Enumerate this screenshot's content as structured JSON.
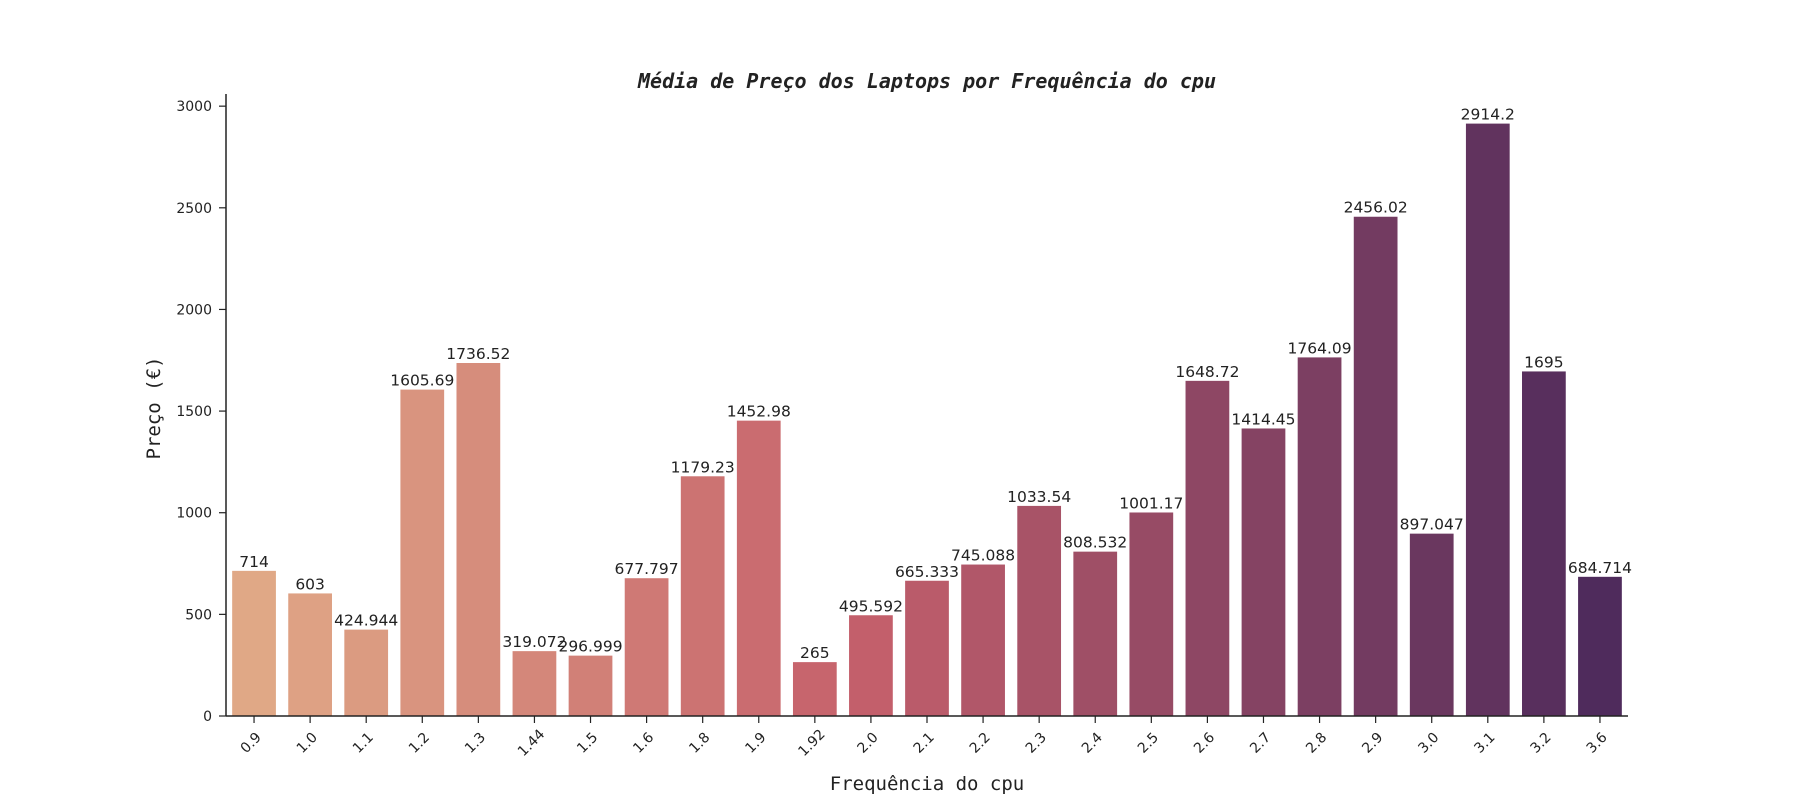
{
  "chart_data": {
    "type": "bar",
    "title": "Média de Preço dos Laptops por Frequência do cpu",
    "xlabel": "Frequência do cpu",
    "ylabel": "Preço (€)",
    "categories": [
      "0.9",
      "1.0",
      "1.1",
      "1.2",
      "1.3",
      "1.44",
      "1.5",
      "1.6",
      "1.8",
      "1.9",
      "1.92",
      "2.0",
      "2.1",
      "2.2",
      "2.3",
      "2.4",
      "2.5",
      "2.6",
      "2.7",
      "2.8",
      "2.9",
      "3.0",
      "3.1",
      "3.2",
      "3.6"
    ],
    "values": [
      714,
      603,
      424.944,
      1605.69,
      1736.52,
      319.072,
      296.999,
      677.797,
      1179.23,
      1452.98,
      265,
      495.592,
      665.333,
      745.088,
      1033.54,
      808.532,
      1001.17,
      1648.72,
      1414.45,
      1764.09,
      2456.02,
      897.047,
      2914.2,
      1695,
      684.714
    ],
    "value_labels": [
      "714",
      "603",
      "424.944",
      "1605.69",
      "1736.52",
      "319.072",
      "296.999",
      "677.797",
      "1179.23",
      "1452.98",
      "265",
      "495.592",
      "665.333",
      "745.088",
      "1033.54",
      "808.532",
      "1001.17",
      "1648.72",
      "1414.45",
      "1764.09",
      "2456.02",
      "897.047",
      "2914.2",
      "1695",
      "684.714"
    ],
    "yticks": [
      0,
      500,
      1000,
      1500,
      2000,
      2500,
      3000
    ],
    "ylim": [
      0,
      3050
    ],
    "grid": false,
    "legend": "none",
    "palette_start": "#e0a886",
    "palette_mid": "#c5606b",
    "palette_end": "#4f2b5c"
  }
}
